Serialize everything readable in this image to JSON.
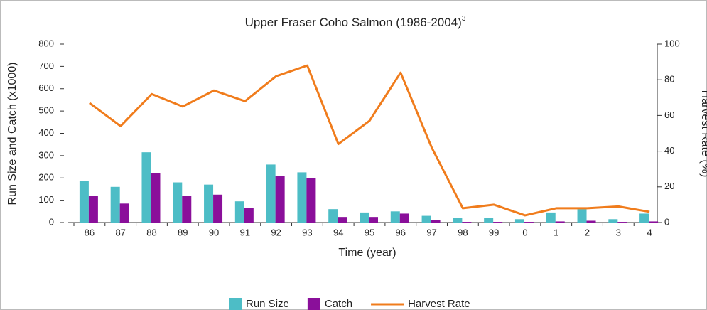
{
  "chart_data": {
    "type": "bar-line",
    "title": "Upper Fraser Coho Salmon (1986-2004)",
    "title_superscript": "3",
    "x_label": "Time (year)",
    "y_label": "Run Size and Catch (x1000)",
    "y2_label": "Harvest Rate (%)",
    "categories": [
      "86",
      "87",
      "88",
      "89",
      "90",
      "91",
      "92",
      "93",
      "94",
      "95",
      "96",
      "97",
      "98",
      "99",
      "0",
      "1",
      "2",
      "3",
      "4"
    ],
    "series": [
      {
        "name": "Run Size",
        "color": "#4dbdc6",
        "type": "bar",
        "values": [
          185,
          160,
          315,
          180,
          170,
          95,
          260,
          225,
          60,
          45,
          50,
          30,
          20,
          20,
          15,
          45,
          60,
          15,
          40
        ]
      },
      {
        "name": "Catch",
        "color": "#8a0f9a",
        "type": "bar",
        "values": [
          120,
          85,
          220,
          120,
          125,
          65,
          210,
          200,
          25,
          25,
          40,
          10,
          3,
          3,
          3,
          5,
          8,
          3,
          5
        ]
      },
      {
        "name": "Harvest Rate",
        "color": "#f07c1c",
        "type": "line",
        "axis": "y2",
        "values": [
          67,
          54,
          72,
          65,
          74,
          68,
          82,
          88,
          44,
          57,
          84,
          42,
          8,
          10,
          4,
          8,
          8,
          9,
          6
        ]
      }
    ],
    "ylim": [
      0,
      800
    ],
    "yticks": [
      0,
      100,
      200,
      300,
      400,
      500,
      600,
      700,
      800
    ],
    "y2lim": [
      0,
      100
    ],
    "y2ticks": [
      0,
      20,
      40,
      60,
      80,
      100
    ],
    "legend": "bottom"
  }
}
